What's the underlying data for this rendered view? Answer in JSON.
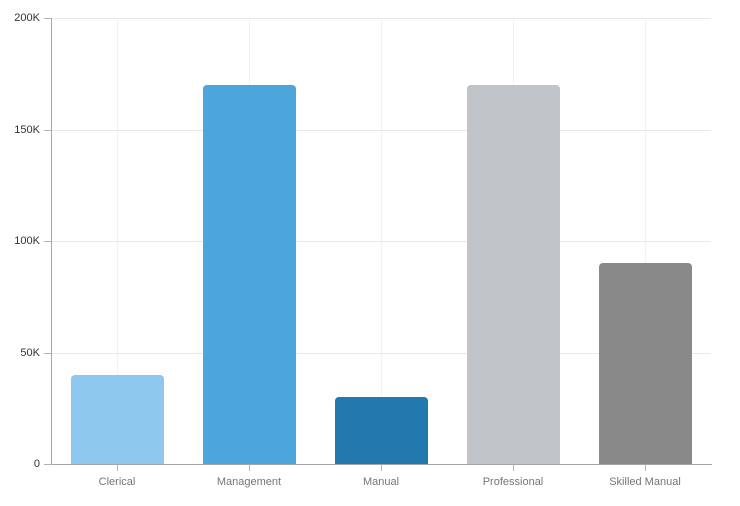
{
  "chart": {
    "background_color": "#ffffff",
    "axis_color": "#a6a6a6",
    "h_gridline_color": "#e8e8e8",
    "v_gridline_color": "#f2f2f2",
    "tick_color": "#b3b3b3",
    "y_label_color": "#333333",
    "x_label_color": "#767676"
  },
  "chart_data": {
    "type": "bar",
    "title": "",
    "xlabel": "",
    "ylabel": "",
    "categories": [
      "Clerical",
      "Management",
      "Manual",
      "Professional",
      "Skilled Manual"
    ],
    "values": [
      40000,
      170000,
      30000,
      170000,
      90000
    ],
    "bar_colors": [
      "#8ec8ee",
      "#4ca6db",
      "#2279ae",
      "#c0c3c8",
      "#898989"
    ],
    "ylim": [
      0,
      200000
    ],
    "y_ticks": [
      {
        "value": 0,
        "label": "0"
      },
      {
        "value": 50000,
        "label": "50K"
      },
      {
        "value": 100000,
        "label": "100K"
      },
      {
        "value": 150000,
        "label": "150K"
      },
      {
        "value": 200000,
        "label": "200K"
      }
    ],
    "grid": "horizontal value lines + faint vertical category-center lines",
    "legend": "none"
  }
}
